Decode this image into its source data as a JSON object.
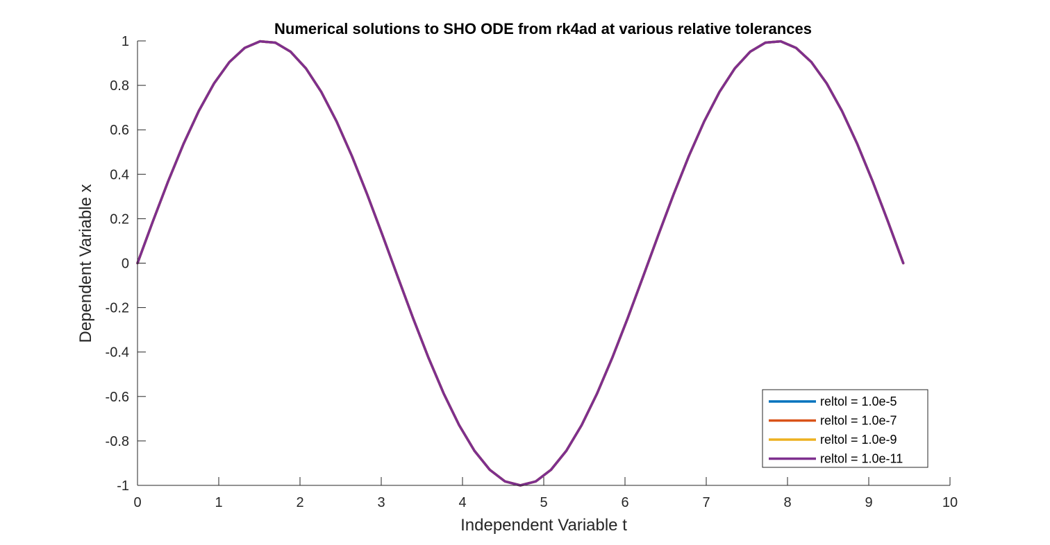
{
  "chart_data": {
    "type": "line",
    "title": "Numerical solutions to SHO ODE from rk4ad at various relative tolerances",
    "xlabel": "Independent Variable t",
    "ylabel": "Dependent Variable x",
    "xlim": [
      0,
      10
    ],
    "ylim": [
      -1,
      1
    ],
    "xticks": [
      0,
      1,
      2,
      3,
      4,
      5,
      6,
      7,
      8,
      9,
      10
    ],
    "yticks": [
      1,
      0.8,
      0.6,
      0.4,
      0.2,
      0,
      -0.2,
      -0.4,
      -0.6,
      -0.8,
      -1
    ],
    "xtick_labels": [
      "0",
      "1",
      "2",
      "3",
      "4",
      "5",
      "6",
      "7",
      "8",
      "9",
      "10"
    ],
    "ytick_labels": [
      "1",
      "0.8",
      "0.6",
      "0.4",
      "0.2",
      "0",
      "-0.2",
      "-0.4",
      "-0.6",
      "-0.8",
      "-1"
    ],
    "grid": false,
    "legend_position": "bottom-right",
    "x": [
      0,
      0.1885,
      0.377,
      0.5655,
      0.754,
      0.9425,
      1.131,
      1.3195,
      1.508,
      1.6965,
      1.885,
      2.0735,
      2.262,
      2.4505,
      2.639,
      2.8274,
      3.0159,
      3.2044,
      3.3929,
      3.5814,
      3.7699,
      3.9584,
      4.1469,
      4.3354,
      4.5239,
      4.7124,
      4.9009,
      5.0894,
      5.2779,
      5.4664,
      5.6549,
      5.8434,
      6.0319,
      6.2204,
      6.4089,
      6.5974,
      6.7859,
      6.9744,
      7.1629,
      7.3513,
      7.5398,
      7.7283,
      7.9168,
      8.1053,
      8.2938,
      8.4823,
      8.6708,
      8.8593,
      9.0478,
      9.2363,
      9.4248
    ],
    "series": [
      {
        "name": "reltol = 1.0e-5",
        "color": "#0072BD",
        "values": [
          0,
          0.1874,
          0.3681,
          0.5358,
          0.6845,
          0.809,
          0.9048,
          0.9686,
          0.998,
          0.9921,
          0.9511,
          0.8763,
          0.7705,
          0.6374,
          0.4818,
          0.309,
          0.1253,
          -0.0628,
          -0.2487,
          -0.4258,
          -0.5878,
          -0.729,
          -0.8443,
          -0.9298,
          -0.9823,
          -1.0,
          -0.9823,
          -0.9298,
          -0.8443,
          -0.729,
          -0.5878,
          -0.4258,
          -0.2487,
          -0.0628,
          0.1253,
          0.309,
          0.4818,
          0.6374,
          0.7705,
          0.8763,
          0.9511,
          0.9921,
          0.998,
          0.9686,
          0.9048,
          0.809,
          0.6845,
          0.5358,
          0.3681,
          0.1874,
          0
        ]
      },
      {
        "name": "reltol = 1.0e-7",
        "color": "#D95319",
        "values": [
          0,
          0.1874,
          0.3681,
          0.5358,
          0.6845,
          0.809,
          0.9048,
          0.9686,
          0.998,
          0.9921,
          0.9511,
          0.8763,
          0.7705,
          0.6374,
          0.4818,
          0.309,
          0.1253,
          -0.0628,
          -0.2487,
          -0.4258,
          -0.5878,
          -0.729,
          -0.8443,
          -0.9298,
          -0.9823,
          -1.0,
          -0.9823,
          -0.9298,
          -0.8443,
          -0.729,
          -0.5878,
          -0.4258,
          -0.2487,
          -0.0628,
          0.1253,
          0.309,
          0.4818,
          0.6374,
          0.7705,
          0.8763,
          0.9511,
          0.9921,
          0.998,
          0.9686,
          0.9048,
          0.809,
          0.6845,
          0.5358,
          0.3681,
          0.1874,
          0
        ]
      },
      {
        "name": "reltol = 1.0e-9",
        "color": "#EDB120",
        "values": [
          0,
          0.1874,
          0.3681,
          0.5358,
          0.6845,
          0.809,
          0.9048,
          0.9686,
          0.998,
          0.9921,
          0.9511,
          0.8763,
          0.7705,
          0.6374,
          0.4818,
          0.309,
          0.1253,
          -0.0628,
          -0.2487,
          -0.4258,
          -0.5878,
          -0.729,
          -0.8443,
          -0.9298,
          -0.9823,
          -1.0,
          -0.9823,
          -0.9298,
          -0.8443,
          -0.729,
          -0.5878,
          -0.4258,
          -0.2487,
          -0.0628,
          0.1253,
          0.309,
          0.4818,
          0.6374,
          0.7705,
          0.8763,
          0.9511,
          0.9921,
          0.998,
          0.9686,
          0.9048,
          0.809,
          0.6845,
          0.5358,
          0.3681,
          0.1874,
          0
        ]
      },
      {
        "name": "reltol = 1.0e-11",
        "color": "#7E2F8E",
        "values": [
          0,
          0.1874,
          0.3681,
          0.5358,
          0.6845,
          0.809,
          0.9048,
          0.9686,
          0.998,
          0.9921,
          0.9511,
          0.8763,
          0.7705,
          0.6374,
          0.4818,
          0.309,
          0.1253,
          -0.0628,
          -0.2487,
          -0.4258,
          -0.5878,
          -0.729,
          -0.8443,
          -0.9298,
          -0.9823,
          -1.0,
          -0.9823,
          -0.9298,
          -0.8443,
          -0.729,
          -0.5878,
          -0.4258,
          -0.2487,
          -0.0628,
          0.1253,
          0.309,
          0.4818,
          0.6374,
          0.7705,
          0.8763,
          0.9511,
          0.9921,
          0.998,
          0.9686,
          0.9048,
          0.809,
          0.6845,
          0.5358,
          0.3681,
          0.1874,
          0
        ]
      }
    ]
  }
}
